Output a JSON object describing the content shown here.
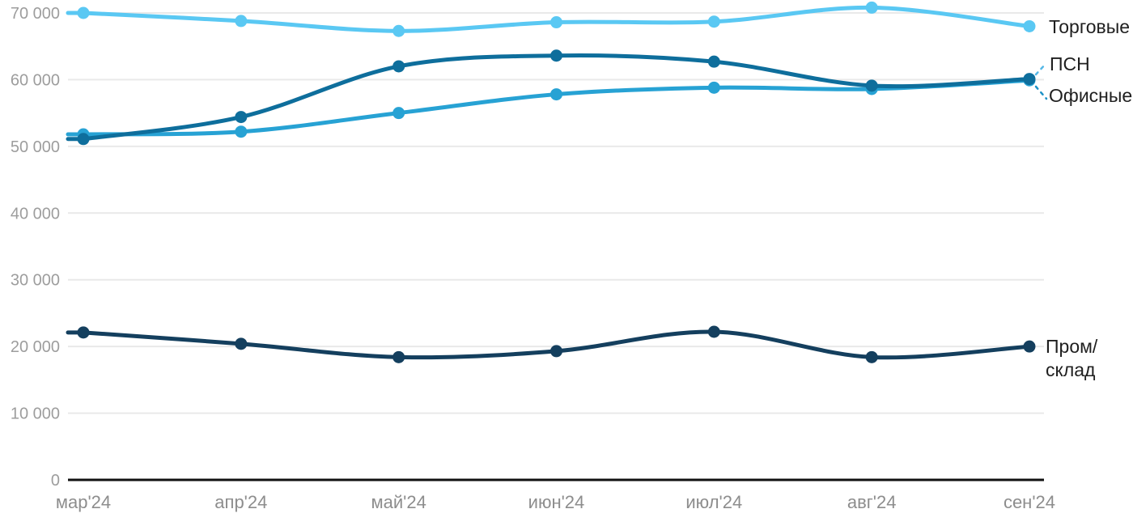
{
  "chart_data": {
    "type": "line",
    "categories": [
      "мар'24",
      "апр'24",
      "май'24",
      "июн'24",
      "июл'24",
      "авг'24",
      "сен'24"
    ],
    "series": [
      {
        "key": "torgovye",
        "name": "Торговые",
        "color": "#5AC8F3",
        "values": [
          70000,
          68800,
          67300,
          68600,
          68700,
          70800,
          68000
        ]
      },
      {
        "key": "ofisnye",
        "name": "Офисные",
        "color": "#27A2D4",
        "values": [
          51800,
          52200,
          55000,
          57800,
          58800,
          58600,
          59900
        ]
      },
      {
        "key": "psn",
        "name": "ПСН",
        "color": "#0E6E9C",
        "values": [
          51100,
          54400,
          62000,
          63600,
          62700,
          59100,
          60100
        ]
      },
      {
        "key": "prom-sklad",
        "name": "Пром/склад",
        "color": "#143F5E",
        "values": [
          22100,
          20400,
          18400,
          19300,
          22200,
          18400,
          20000
        ]
      }
    ],
    "title": "",
    "xlabel": "",
    "ylabel": "",
    "ylim": [
      0,
      70000
    ],
    "yticks": [
      0,
      10000,
      20000,
      30000,
      40000,
      50000,
      60000,
      70000
    ],
    "ytick_labels": [
      "0",
      "10 000",
      "20 000",
      "30 000",
      "40 000",
      "50 000",
      "60 000",
      "70 000"
    ],
    "grid": "horizontal",
    "legend_position": "right-inline"
  },
  "legend": {
    "torgovye": {
      "label": "Торговые"
    },
    "psn": {
      "label": "ПСН"
    },
    "ofisnye": {
      "label": "Офисные"
    },
    "prom": {
      "label": "Пром/\nсклад"
    }
  },
  "colors": {
    "background": "#FFFFFF",
    "grid": "#E9E9E9",
    "axis": "#111111",
    "ytick_text": "#9D9D9D",
    "xtick_text": "#8D8D8D",
    "legend_text": "#1F1F1F",
    "leader_psn": "#54B7E6",
    "leader_ofisnye": "#1E93C7"
  }
}
